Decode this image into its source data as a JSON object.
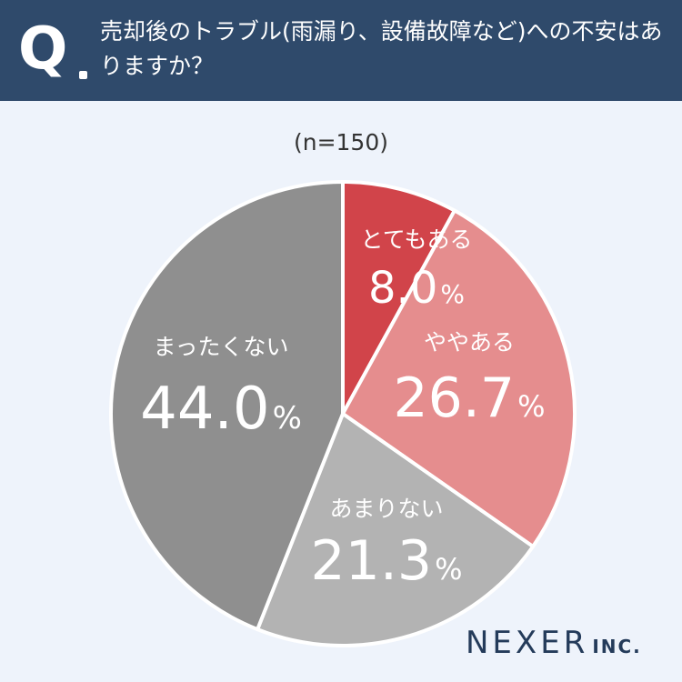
{
  "header": {
    "q_label": "Q",
    "question": "売却後のトラブル(雨漏り、設備故障など)への不安はありますか？"
  },
  "sample_size": "(n=150)",
  "logo": {
    "name": "NEXER",
    "suffix": "INC."
  },
  "colors": {
    "header_bg": "#2f4a6b",
    "background": "#eef3fb",
    "slice_1": "#d1444a",
    "slice_2": "#e58d8e",
    "slice_3": "#b3b3b3",
    "slice_4": "#8f8f8f"
  },
  "chart_data": {
    "type": "pie",
    "title": "",
    "categories": [
      "とてもある",
      "ややある",
      "あまりない",
      "まったくない"
    ],
    "values": [
      8.0,
      26.7,
      21.3,
      44.0
    ],
    "value_labels": [
      "8.0",
      "26.7",
      "21.3",
      "44.0"
    ],
    "unit": "%",
    "start": "12 o'clock, clockwise"
  }
}
